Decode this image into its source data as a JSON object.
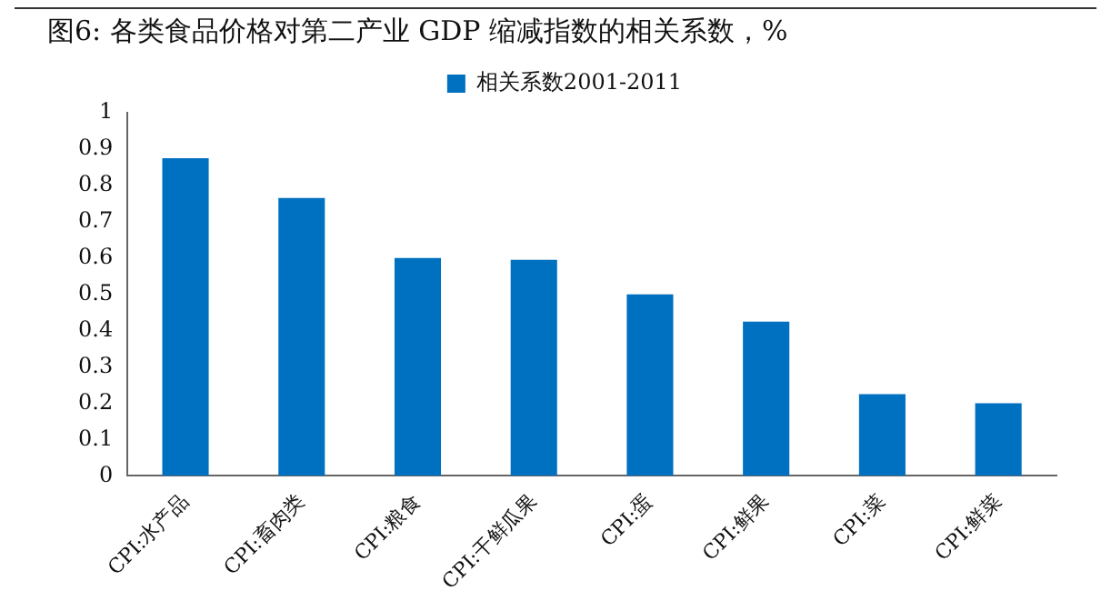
{
  "chart_data": {
    "type": "bar",
    "title": "图6:  各类食品价格对第二产业 GDP 缩减指数的相关系数，%",
    "categories": [
      "CPI:水产品",
      "CPI:畜肉类",
      "CPI:粮食",
      "CPI:干鲜瓜果",
      "CPI:蛋",
      "CPI:鲜果",
      "CPI:菜",
      "CPI:鲜菜"
    ],
    "series": [
      {
        "name": "相关系数2001-2011",
        "color": "#0070c0",
        "values": [
          0.875,
          0.765,
          0.6,
          0.595,
          0.5,
          0.425,
          0.225,
          0.2
        ]
      }
    ],
    "ylim": [
      0,
      1
    ],
    "yticks": [
      0,
      0.1,
      0.2,
      0.3,
      0.4,
      0.5,
      0.6,
      0.7,
      0.8,
      0.9,
      1
    ],
    "grid": false,
    "legend": "top"
  }
}
